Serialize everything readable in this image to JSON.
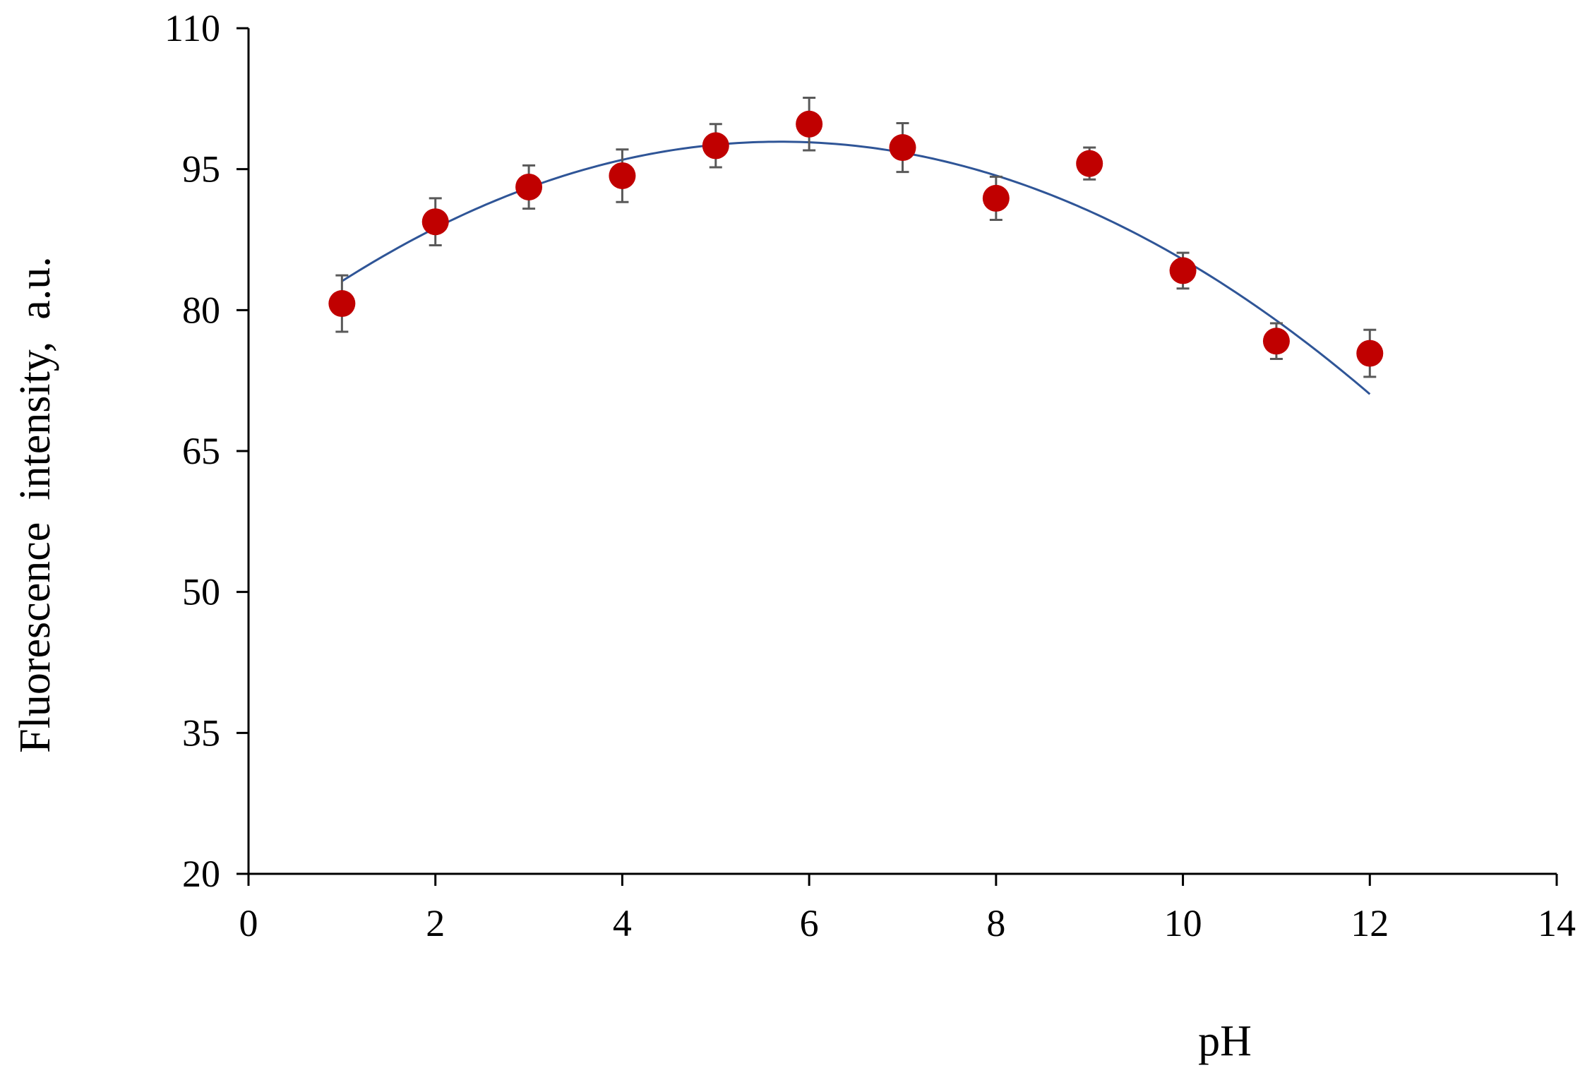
{
  "chart_data": {
    "type": "scatter",
    "title": "",
    "xlabel": "pH",
    "ylabel": "Fluorescence  intensity,  a.u.",
    "xlim": [
      0,
      14
    ],
    "ylim": [
      20,
      110
    ],
    "xticks": [
      0,
      2,
      4,
      6,
      8,
      10,
      12,
      14
    ],
    "yticks": [
      20,
      35,
      50,
      65,
      80,
      95,
      110
    ],
    "grid": false,
    "legend": "none",
    "series": [
      {
        "kind": "points-with-error-bars",
        "x": [
          1,
          2,
          3,
          4,
          5,
          6,
          7,
          8,
          9,
          10,
          11,
          12
        ],
        "y": [
          80.7,
          89.4,
          93.1,
          94.3,
          97.5,
          99.8,
          97.3,
          91.9,
          95.6,
          84.2,
          76.7,
          75.4
        ],
        "error": [
          3.0,
          2.5,
          2.3,
          2.8,
          2.3,
          2.8,
          2.6,
          2.3,
          1.7,
          1.9,
          1.9,
          2.5
        ],
        "color": "#C00000"
      },
      {
        "kind": "polynomial-trendline",
        "x_range": [
          1,
          12
        ],
        "coefficients": [
          76.07,
          7.68,
          -0.6748
        ],
        "color": "#2F5597"
      }
    ]
  }
}
